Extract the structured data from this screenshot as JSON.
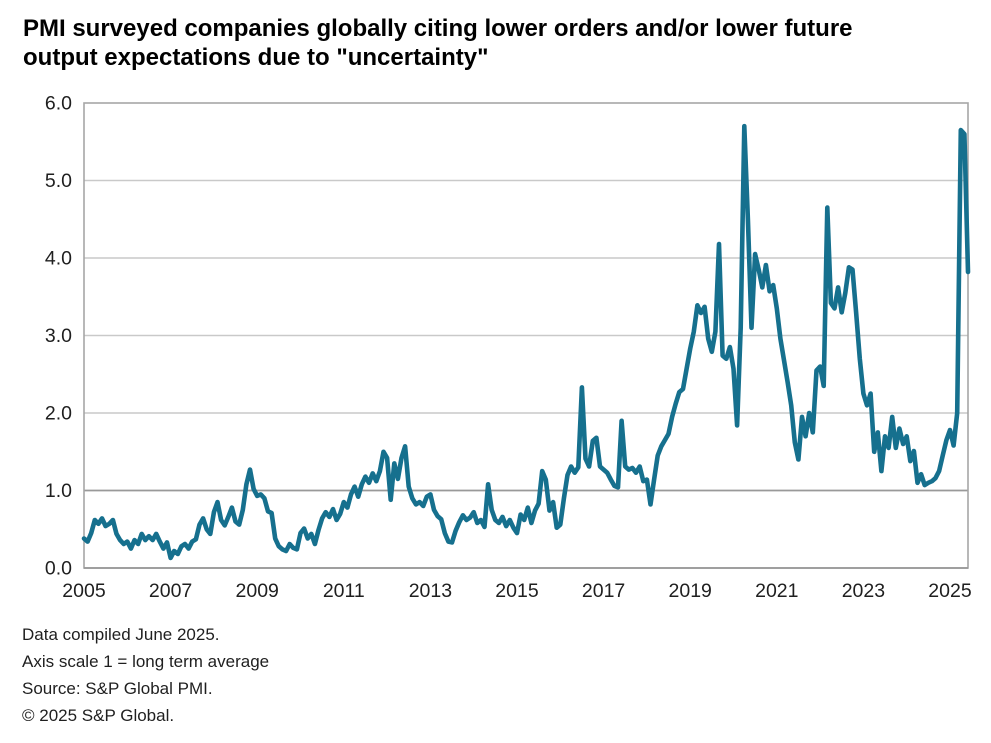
{
  "title_lines": [
    "PMI surveyed companies globally citing lower orders and/or lower future",
    "output expectations due to \"uncertainty\""
  ],
  "footer_lines": [
    "Data compiled June 2025.",
    "Axis scale 1 = long term average",
    "Source: S&P Global PMI.",
    "© 2025 S&P Global."
  ],
  "colors": {
    "line": "#16708e",
    "grid": "#c9c9c9",
    "baseline": "#999999",
    "frame": "#a6a6a6",
    "text": "#1f1f1f"
  },
  "y_axis": {
    "ticks": [
      "0.0",
      "1.0",
      "2.0",
      "3.0",
      "4.0",
      "5.0",
      "6.0"
    ],
    "min": 0,
    "max": 6
  },
  "x_axis": {
    "ticks": [
      "2005",
      "2007",
      "2009",
      "2011",
      "2013",
      "2015",
      "2017",
      "2019",
      "2021",
      "2023",
      "2025"
    ]
  },
  "chart_data": {
    "type": "line",
    "title": "PMI surveyed companies globally citing lower orders and/or lower future output expectations due to \"uncertainty\"",
    "xlabel": "",
    "ylabel": "",
    "axis_note": "Axis scale 1 = long term average",
    "frequency": "monthly",
    "x_start": "2005-01",
    "x_end": "2025-06",
    "ylim": [
      0,
      6
    ],
    "grid": "horizontal",
    "legend": "none",
    "values": [
      0.38,
      0.34,
      0.45,
      0.62,
      0.57,
      0.64,
      0.54,
      0.57,
      0.62,
      0.44,
      0.36,
      0.31,
      0.34,
      0.25,
      0.36,
      0.31,
      0.44,
      0.36,
      0.41,
      0.36,
      0.44,
      0.34,
      0.25,
      0.33,
      0.13,
      0.22,
      0.18,
      0.28,
      0.31,
      0.25,
      0.34,
      0.37,
      0.56,
      0.64,
      0.5,
      0.44,
      0.72,
      0.85,
      0.62,
      0.55,
      0.66,
      0.78,
      0.6,
      0.56,
      0.75,
      1.08,
      1.27,
      1.02,
      0.93,
      0.95,
      0.9,
      0.73,
      0.71,
      0.38,
      0.28,
      0.24,
      0.22,
      0.31,
      0.26,
      0.24,
      0.45,
      0.51,
      0.38,
      0.44,
      0.31,
      0.49,
      0.64,
      0.72,
      0.66,
      0.76,
      0.62,
      0.7,
      0.85,
      0.78,
      0.95,
      1.05,
      0.92,
      1.08,
      1.18,
      1.1,
      1.22,
      1.12,
      1.25,
      1.5,
      1.42,
      0.88,
      1.35,
      1.15,
      1.42,
      1.57,
      1.05,
      0.9,
      0.82,
      0.85,
      0.8,
      0.92,
      0.95,
      0.75,
      0.67,
      0.63,
      0.45,
      0.34,
      0.33,
      0.48,
      0.59,
      0.68,
      0.62,
      0.65,
      0.72,
      0.58,
      0.62,
      0.53,
      1.08,
      0.75,
      0.62,
      0.58,
      0.66,
      0.54,
      0.62,
      0.52,
      0.45,
      0.69,
      0.62,
      0.78,
      0.58,
      0.74,
      0.83,
      1.25,
      1.14,
      0.74,
      0.85,
      0.52,
      0.56,
      0.9,
      1.2,
      1.31,
      1.23,
      1.3,
      2.33,
      1.41,
      1.31,
      1.64,
      1.68,
      1.31,
      1.27,
      1.23,
      1.14,
      1.06,
      1.04,
      1.9,
      1.31,
      1.27,
      1.29,
      1.23,
      1.31,
      1.12,
      1.14,
      0.82,
      1.14,
      1.45,
      1.57,
      1.65,
      1.73,
      1.95,
      2.12,
      2.27,
      2.31,
      2.57,
      2.83,
      3.05,
      3.39,
      3.29,
      3.37,
      2.96,
      2.79,
      3.05,
      4.18,
      2.74,
      2.7,
      2.85,
      2.57,
      1.84,
      3.1,
      5.7,
      4.5,
      3.1,
      4.05,
      3.85,
      3.62,
      3.91,
      3.57,
      3.65,
      3.35,
      2.96,
      2.68,
      2.4,
      2.1,
      1.62,
      1.4,
      1.95,
      1.7,
      2.0,
      1.75,
      2.55,
      2.6,
      2.35,
      4.65,
      3.42,
      3.35,
      3.62,
      3.3,
      3.55,
      3.88,
      3.85,
      3.3,
      2.7,
      2.25,
      2.1,
      2.25,
      1.5,
      1.75,
      1.25,
      1.7,
      1.55,
      1.95,
      1.55,
      1.8,
      1.6,
      1.7,
      1.38,
      1.51,
      1.1,
      1.21,
      1.07,
      1.1,
      1.12,
      1.16,
      1.25,
      1.45,
      1.65,
      1.78,
      1.58,
      2.0,
      5.65,
      5.6,
      3.82
    ]
  }
}
